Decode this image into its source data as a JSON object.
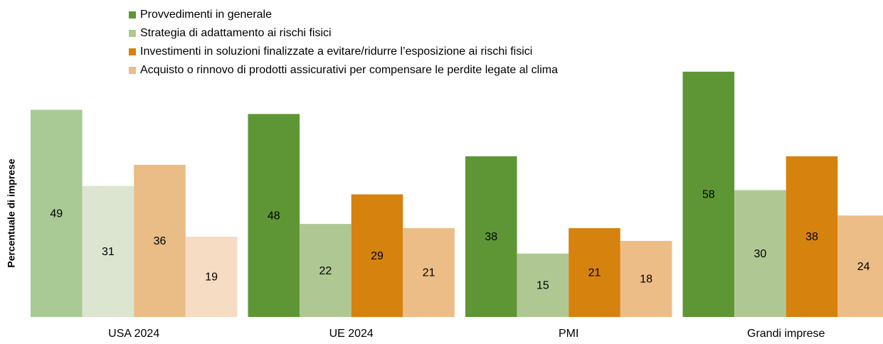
{
  "chart_data": {
    "type": "bar",
    "ylabel": "Percentuale di imprese",
    "categories": [
      "USA 2024",
      "UE 2024",
      "PMI",
      "Grandi imprese"
    ],
    "series": [
      {
        "name": "Provvedimenti in generale",
        "color": "#5e9635",
        "colors": [
          "#a9c995",
          "#5e9635",
          "#5e9635",
          "#5e9635"
        ],
        "values": [
          49,
          48,
          38,
          58
        ]
      },
      {
        "name": "Strategia di adattamento ai rischi fisici",
        "color": "#afc893",
        "colors": [
          "#dbe5cf",
          "#afc893",
          "#afc893",
          "#afc893"
        ],
        "values": [
          31,
          22,
          15,
          30
        ]
      },
      {
        "name": "Investimenti in soluzioni finalizzate a evitare/ridurre l’esposizione ai rischi fisici",
        "color": "#d6820f",
        "colors": [
          "#e9bd85",
          "#d6820f",
          "#d6820f",
          "#d6820f"
        ],
        "values": [
          36,
          29,
          21,
          38
        ]
      },
      {
        "name": "Acquisto o rinnovo di prodotti assicurativi per compensare le perdite legate al clima",
        "color": "#ecbd86",
        "colors": [
          "#f6dcc2",
          "#ecbd86",
          "#ecbd86",
          "#ecbd86"
        ],
        "values": [
          19,
          21,
          18,
          24
        ]
      }
    ],
    "ylim": [
      0,
      60
    ],
    "legend": "top-left"
  }
}
